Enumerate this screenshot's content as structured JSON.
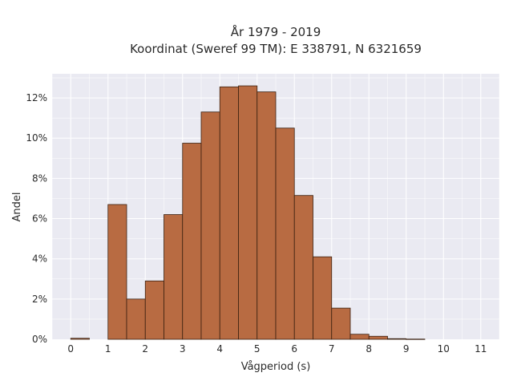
{
  "chart_data": {
    "type": "bar",
    "title_line1": "År 1979 - 2019",
    "title_line2": "Koordinat (Sweref 99 TM): E 338791, N 6321659",
    "xlabel": "Vågperiod (s)",
    "ylabel": "Andel",
    "bin_width": 0.5,
    "bin_starts": [
      0,
      0.5,
      1,
      1.5,
      2,
      2.5,
      3,
      3.5,
      4,
      4.5,
      5,
      5.5,
      6,
      6.5,
      7,
      7.5,
      8,
      8.5,
      9,
      9.5,
      10,
      10.5
    ],
    "values": [
      0.05,
      0,
      6.7,
      2.0,
      2.9,
      6.2,
      9.75,
      11.3,
      12.55,
      12.6,
      12.3,
      10.5,
      7.15,
      4.1,
      1.55,
      0.25,
      0.15,
      0.03,
      0.01,
      0,
      0,
      0
    ],
    "x_ticks": [
      "0",
      "1",
      "2",
      "3",
      "4",
      "5",
      "6",
      "7",
      "8",
      "9",
      "10",
      "11"
    ],
    "y_ticks": [
      "0%",
      "2%",
      "4%",
      "6%",
      "8%",
      "10%",
      "12%"
    ],
    "xlim": [
      -0.5,
      11.5
    ],
    "ylim": [
      0,
      13.2
    ],
    "grid": true,
    "colors": {
      "bar": "#b86b42",
      "bar_edge": "#3a2010",
      "background": "#eaeaf2",
      "grid": "#ffffff"
    }
  }
}
